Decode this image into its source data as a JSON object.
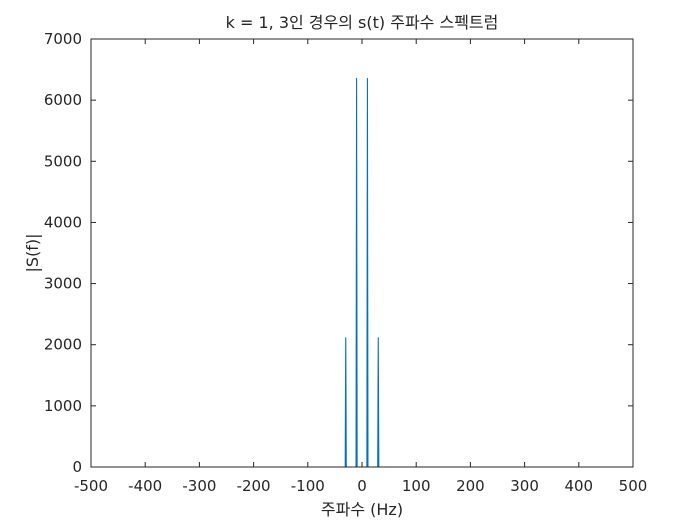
{
  "chart_data": {
    "type": "line",
    "title": "k = 1, 3인 경우의 s(t) 주파수 스펙트럼",
    "xlabel": "주파수 (Hz)",
    "ylabel": "|S(f)|",
    "xlim": [
      -500,
      500
    ],
    "ylim": [
      0,
      7000
    ],
    "xticks": [
      -500,
      -400,
      -300,
      -200,
      -100,
      0,
      100,
      200,
      300,
      400,
      500
    ],
    "yticks": [
      0,
      1000,
      2000,
      3000,
      4000,
      5000,
      6000,
      7000
    ],
    "grid": false,
    "series": [
      {
        "color": "#0072BD",
        "x": [
          -500,
          -31,
          -30,
          -29,
          -11,
          -10,
          -9,
          9,
          10,
          11,
          29,
          30,
          31,
          500
        ],
        "y": [
          0,
          0,
          2120,
          0,
          0,
          6360,
          0,
          0,
          6360,
          0,
          0,
          2120,
          0,
          0
        ]
      }
    ]
  }
}
